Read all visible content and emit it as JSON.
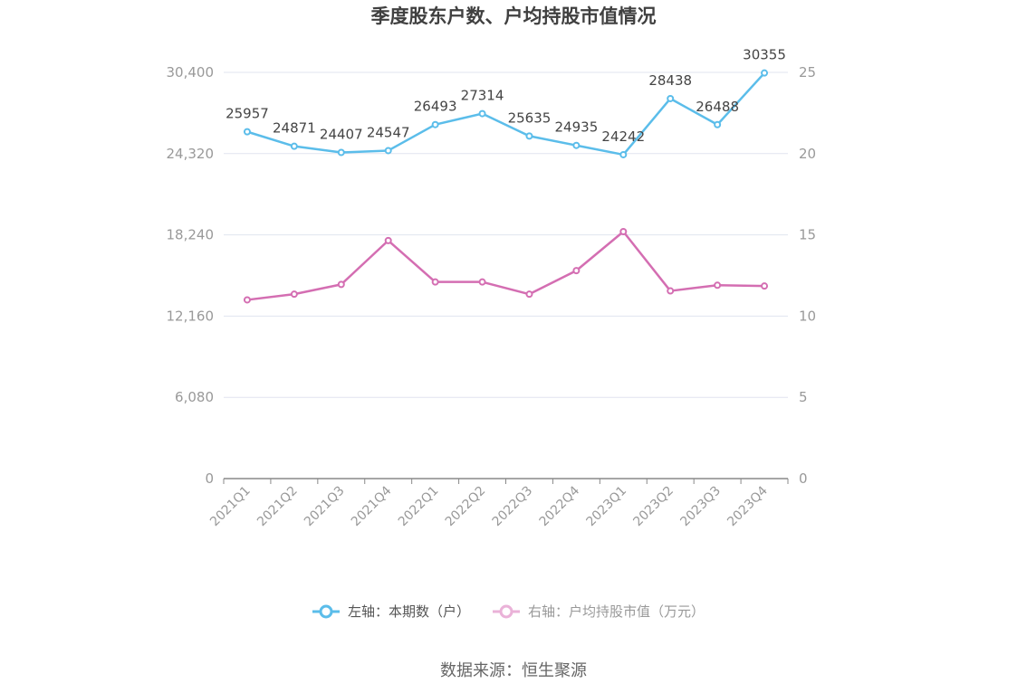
{
  "chart_data": {
    "type": "line",
    "title": "季度股东户数、户均持股市值情况",
    "categories": [
      "2021Q1",
      "2021Q2",
      "2021Q3",
      "2021Q4",
      "2022Q1",
      "2022Q2",
      "2022Q3",
      "2022Q4",
      "2023Q1",
      "2023Q2",
      "2023Q3",
      "2023Q4"
    ],
    "y_left": {
      "ticks": [
        "0",
        "6,080",
        "12,160",
        "18,240",
        "24,320",
        "30,400"
      ],
      "range": [
        0,
        30400
      ]
    },
    "y_right": {
      "ticks": [
        "0",
        "5",
        "10",
        "15",
        "20",
        "25"
      ],
      "range": [
        0,
        25
      ]
    },
    "series": [
      {
        "name": "左轴：本期数（户）",
        "axis": "left",
        "color": "#5bbdea",
        "values": [
          25957,
          24871,
          24407,
          24547,
          26493,
          27314,
          25635,
          24935,
          24242,
          28438,
          26488,
          30355
        ],
        "labels": [
          "25957",
          "24871",
          "24407",
          "24547",
          "26493",
          "27314",
          "25635",
          "24935",
          "24242",
          "28438",
          "26488",
          "30355"
        ]
      },
      {
        "name": "右轴：户均持股市值（万元）",
        "axis": "right",
        "color": "#d46eb2",
        "values": [
          11.0,
          11.35,
          11.95,
          14.65,
          12.1,
          12.1,
          11.35,
          12.8,
          15.2,
          11.55,
          11.9,
          11.85
        ]
      }
    ],
    "grid": true,
    "legend_position": "bottom"
  },
  "source": "数据来源：恒生聚源"
}
